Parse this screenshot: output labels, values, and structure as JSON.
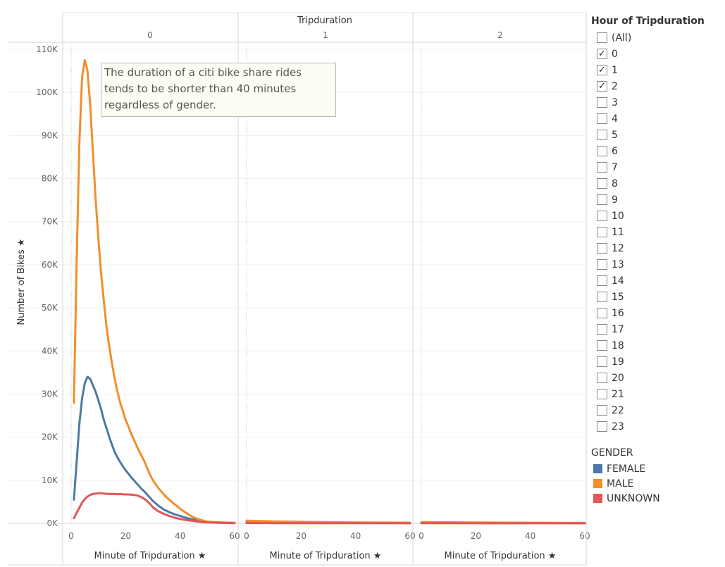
{
  "chart_data": {
    "type": "line",
    "column_header_title": "Tripduration",
    "ylabel": "Number of Bikes",
    "xlabel": "Minute of Tripduration",
    "ylim": [
      0,
      110000
    ],
    "y_ticks": [
      "0K",
      "10K",
      "20K",
      "30K",
      "40K",
      "50K",
      "60K",
      "70K",
      "80K",
      "90K",
      "100K",
      "110K"
    ],
    "x_ticks": [
      0,
      20,
      40,
      60
    ],
    "panels": [
      {
        "label": "0",
        "series": [
          {
            "name": "FEMALE",
            "x": [
              1,
              2,
              3,
              4,
              5,
              6,
              7,
              8,
              9,
              10,
              11,
              12,
              13,
              14,
              15,
              16,
              17,
              18,
              19,
              20,
              21,
              22,
              23,
              24,
              25,
              26,
              27,
              28,
              29,
              30,
              32,
              34,
              36,
              38,
              40,
              42,
              44,
              46,
              48,
              50,
              55,
              60
            ],
            "y": [
              5500,
              14000,
              23000,
              29000,
              32500,
              34000,
              33500,
              32000,
              30500,
              28500,
              26500,
              24000,
              22000,
              20000,
              18200,
              16500,
              15300,
              14200,
              13200,
              12300,
              11500,
              10700,
              10000,
              9300,
              8600,
              7900,
              7300,
              6600,
              5900,
              5200,
              4100,
              3200,
              2600,
              2100,
              1700,
              1300,
              1000,
              700,
              500,
              350,
              200,
              100
            ]
          },
          {
            "name": "MALE",
            "x": [
              1,
              2,
              3,
              4,
              5,
              6,
              7,
              8,
              9,
              10,
              11,
              12,
              13,
              14,
              15,
              16,
              17,
              18,
              19,
              20,
              21,
              22,
              23,
              24,
              25,
              26,
              27,
              28,
              29,
              30,
              32,
              34,
              36,
              38,
              40,
              42,
              44,
              46,
              48,
              50,
              55,
              60
            ],
            "y": [
              28000,
              60000,
              88000,
              103500,
              107500,
              105000,
              97000,
              86000,
              75000,
              66000,
              58000,
              51500,
              45500,
              41000,
              37000,
              33500,
              30500,
              28000,
              26000,
              24000,
              22500,
              20800,
              19500,
              18000,
              16700,
              15500,
              14200,
              12700,
              11200,
              10000,
              8200,
              6700,
              5500,
              4400,
              3400,
              2500,
              1700,
              1100,
              700,
              400,
              200,
              100
            ]
          },
          {
            "name": "UNKNOWN",
            "x": [
              1,
              2,
              3,
              4,
              5,
              6,
              7,
              8,
              9,
              10,
              11,
              12,
              13,
              14,
              15,
              16,
              17,
              18,
              19,
              20,
              21,
              22,
              23,
              24,
              25,
              26,
              27,
              28,
              29,
              30,
              32,
              34,
              36,
              38,
              40,
              42,
              44,
              46,
              48,
              50,
              55,
              60
            ],
            "y": [
              1200,
              2400,
              3600,
              4800,
              5600,
              6200,
              6600,
              6800,
              6900,
              7000,
              7000,
              6900,
              6850,
              6800,
              6850,
              6800,
              6750,
              6800,
              6750,
              6700,
              6700,
              6650,
              6600,
              6500,
              6300,
              6000,
              5600,
              5100,
              4500,
              3700,
              2800,
              2200,
              1700,
              1300,
              1000,
              800,
              600,
              450,
              300,
              200,
              100,
              50
            ]
          }
        ]
      },
      {
        "label": "1",
        "series": [
          {
            "name": "FEMALE",
            "x": [
              0,
              10,
              20,
              30,
              40,
              50,
              60
            ],
            "y": [
              250,
              200,
              150,
              130,
              110,
              90,
              80
            ]
          },
          {
            "name": "MALE",
            "x": [
              0,
              10,
              20,
              30,
              40,
              50,
              60
            ],
            "y": [
              600,
              450,
              350,
              280,
              220,
              180,
              150
            ]
          },
          {
            "name": "UNKNOWN",
            "x": [
              0,
              10,
              20,
              30,
              40,
              50,
              60
            ],
            "y": [
              60,
              50,
              40,
              35,
              30,
              25,
              20
            ]
          }
        ]
      },
      {
        "label": "2",
        "series": [
          {
            "name": "FEMALE",
            "x": [
              0,
              10,
              20,
              30,
              40,
              50,
              60
            ],
            "y": [
              120,
              100,
              80,
              70,
              60,
              50,
              40
            ]
          },
          {
            "name": "MALE",
            "x": [
              0,
              10,
              20,
              30,
              40,
              50,
              60
            ],
            "y": [
              300,
              250,
              200,
              170,
              140,
              120,
              100
            ]
          },
          {
            "name": "UNKNOWN",
            "x": [
              0,
              10,
              20,
              30,
              40,
              50,
              60
            ],
            "y": [
              30,
              25,
              20,
              18,
              15,
              12,
              10
            ]
          }
        ]
      }
    ],
    "colors": {
      "FEMALE": "#4e79a7",
      "MALE": "#f28e2b",
      "UNKNOWN": "#e15759"
    },
    "annotation": "The duration of a citi bike share rides tends to be shorter than 40 minutes regardless of gender.",
    "grid": true,
    "legend_position": "right"
  },
  "filter": {
    "title": "Hour of Tripduration",
    "items": [
      {
        "label": "(All)",
        "checked": false
      },
      {
        "label": "0",
        "checked": true
      },
      {
        "label": "1",
        "checked": true
      },
      {
        "label": "2",
        "checked": true
      },
      {
        "label": "3",
        "checked": false
      },
      {
        "label": "4",
        "checked": false
      },
      {
        "label": "5",
        "checked": false
      },
      {
        "label": "6",
        "checked": false
      },
      {
        "label": "7",
        "checked": false
      },
      {
        "label": "8",
        "checked": false
      },
      {
        "label": "9",
        "checked": false
      },
      {
        "label": "10",
        "checked": false
      },
      {
        "label": "11",
        "checked": false
      },
      {
        "label": "12",
        "checked": false
      },
      {
        "label": "13",
        "checked": false
      },
      {
        "label": "14",
        "checked": false
      },
      {
        "label": "15",
        "checked": false
      },
      {
        "label": "16",
        "checked": false
      },
      {
        "label": "17",
        "checked": false
      },
      {
        "label": "18",
        "checked": false
      },
      {
        "label": "19",
        "checked": false
      },
      {
        "label": "20",
        "checked": false
      },
      {
        "label": "21",
        "checked": false
      },
      {
        "label": "22",
        "checked": false
      },
      {
        "label": "23",
        "checked": false
      }
    ]
  },
  "legend": {
    "title": "GENDER",
    "items": [
      {
        "label": "FEMALE",
        "color": "#4e79a7"
      },
      {
        "label": "MALE",
        "color": "#f28e2b"
      },
      {
        "label": "UNKNOWN",
        "color": "#e15759"
      }
    ]
  }
}
